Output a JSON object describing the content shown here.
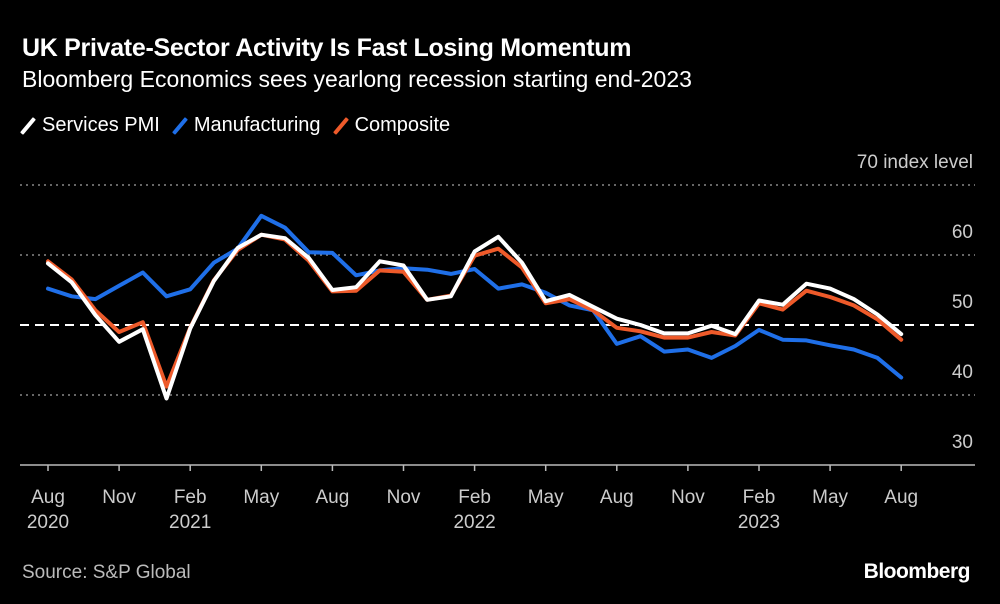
{
  "title": "UK Private-Sector Activity Is Fast Losing Momentum",
  "subtitle": "Bloomberg Economics sees yearlong recession starting end-2023",
  "source": "Source: S&P Global",
  "logo": "Bloomberg",
  "chart_data": {
    "type": "line",
    "ylabel_unit": "index level",
    "ylim": [
      30,
      70
    ],
    "yticks": [
      70,
      60,
      50,
      40,
      30
    ],
    "ytick_labels": [
      "70 index level",
      "60",
      "50",
      "40",
      "30"
    ],
    "reference_line": 50,
    "x": [
      "2020-08",
      "2020-09",
      "2020-10",
      "2020-11",
      "2020-12",
      "2021-01",
      "2021-02",
      "2021-03",
      "2021-04",
      "2021-05",
      "2021-06",
      "2021-07",
      "2021-08",
      "2021-09",
      "2021-10",
      "2021-11",
      "2021-12",
      "2022-01",
      "2022-02",
      "2022-03",
      "2022-04",
      "2022-05",
      "2022-06",
      "2022-07",
      "2022-08",
      "2022-09",
      "2022-10",
      "2022-11",
      "2022-12",
      "2023-01",
      "2023-02",
      "2023-03",
      "2023-04",
      "2023-05",
      "2023-06",
      "2023-07",
      "2023-08"
    ],
    "xtick_labels": [
      {
        "month": "Aug",
        "year": "2020"
      },
      {
        "month": "Nov",
        "year": ""
      },
      {
        "month": "Feb",
        "year": "2021"
      },
      {
        "month": "May",
        "year": ""
      },
      {
        "month": "Aug",
        "year": ""
      },
      {
        "month": "Nov",
        "year": ""
      },
      {
        "month": "Feb",
        "year": "2022"
      },
      {
        "month": "May",
        "year": ""
      },
      {
        "month": "Aug",
        "year": ""
      },
      {
        "month": "Nov",
        "year": ""
      },
      {
        "month": "Feb",
        "year": "2023"
      },
      {
        "month": "May",
        "year": ""
      },
      {
        "month": "Aug",
        "year": ""
      }
    ],
    "legend_position": "top-left",
    "series": [
      {
        "name": "Manufacturing",
        "color": "#1f6fe8",
        "values": [
          55.2,
          54.1,
          53.7,
          55.6,
          57.5,
          54.1,
          55.1,
          58.9,
          60.9,
          65.6,
          63.9,
          60.4,
          60.3,
          57.1,
          57.8,
          58.1,
          57.9,
          57.3,
          58.0,
          55.2,
          55.8,
          54.6,
          52.8,
          52.1,
          47.3,
          48.4,
          46.2,
          46.5,
          45.3,
          47.0,
          49.3,
          47.9,
          47.8,
          47.1,
          46.5,
          45.3,
          42.5
        ]
      },
      {
        "name": "Composite",
        "color": "#ee5a2a",
        "values": [
          59.1,
          56.5,
          52.1,
          49.0,
          50.4,
          41.2,
          49.6,
          56.4,
          60.7,
          62.9,
          62.2,
          59.2,
          54.8,
          54.9,
          57.8,
          57.6,
          53.6,
          54.2,
          59.9,
          60.9,
          58.2,
          53.1,
          53.7,
          52.1,
          49.6,
          49.1,
          48.2,
          48.2,
          49.0,
          48.5,
          53.1,
          52.2,
          54.9,
          54.0,
          52.8,
          50.8,
          47.9
        ]
      },
      {
        "name": "Services PMI",
        "color": "#ffffff",
        "values": [
          58.8,
          56.1,
          51.4,
          47.6,
          49.4,
          39.5,
          49.5,
          56.3,
          61.0,
          62.9,
          62.4,
          59.6,
          55.0,
          55.4,
          59.1,
          58.5,
          53.6,
          54.1,
          60.5,
          62.6,
          58.9,
          53.4,
          54.3,
          52.6,
          50.9,
          50.0,
          48.8,
          48.8,
          49.9,
          48.7,
          53.5,
          52.9,
          55.9,
          55.2,
          53.7,
          51.5,
          48.7
        ]
      }
    ]
  }
}
